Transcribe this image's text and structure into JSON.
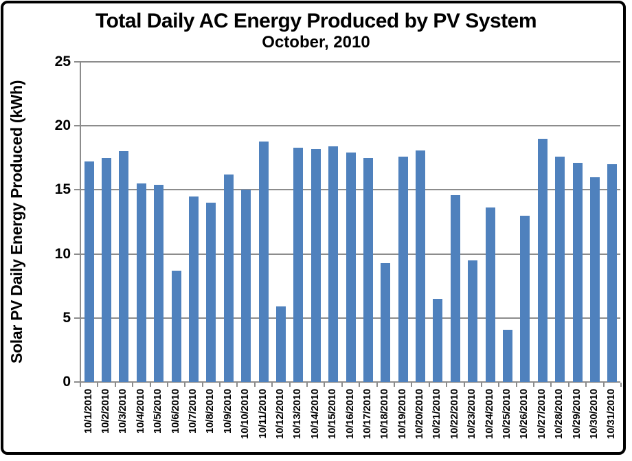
{
  "window": {
    "background_color": "#ffffff",
    "frame_border_color": "#000000"
  },
  "chart_data": {
    "type": "bar",
    "title": "Total Daily AC Energy Produced by PV System",
    "subtitle": "October, 2010",
    "xlabel": "",
    "ylabel": "Solar PV Daily Energy Produced (kWh)",
    "ylim": [
      0,
      25
    ],
    "yticks": [
      0,
      5,
      10,
      15,
      20,
      25
    ],
    "grid": true,
    "legend": false,
    "bar_color": "#4f81bd",
    "axis_color": "#8c8c8c",
    "text_color": "#000000",
    "categories": [
      "10/1/2010",
      "10/2/2010",
      "10/3/2010",
      "10/4/2010",
      "10/5/2010",
      "10/6/2010",
      "10/7/2010",
      "10/8/2010",
      "10/9/2010",
      "10/10/2010",
      "10/11/2010",
      "10/12/2010",
      "10/13/2010",
      "10/14/2010",
      "10/15/2010",
      "10/16/2010",
      "10/17/2010",
      "10/18/2010",
      "10/19/2010",
      "10/20/2010",
      "10/21/2010",
      "10/22/2010",
      "10/23/2010",
      "10/24/2010",
      "10/25/2010",
      "10/26/2010",
      "10/27/2010",
      "10/28/2010",
      "10/29/2010",
      "10/30/2010",
      "10/31/2010"
    ],
    "values": [
      17.2,
      17.5,
      18.0,
      15.5,
      15.4,
      8.7,
      14.5,
      14.0,
      16.2,
      15.0,
      18.8,
      5.9,
      18.3,
      18.2,
      18.4,
      17.9,
      17.5,
      9.3,
      17.6,
      18.1,
      6.5,
      14.6,
      9.5,
      13.6,
      4.1,
      13.0,
      19.0,
      17.6,
      17.1,
      16.0,
      17.0
    ]
  }
}
